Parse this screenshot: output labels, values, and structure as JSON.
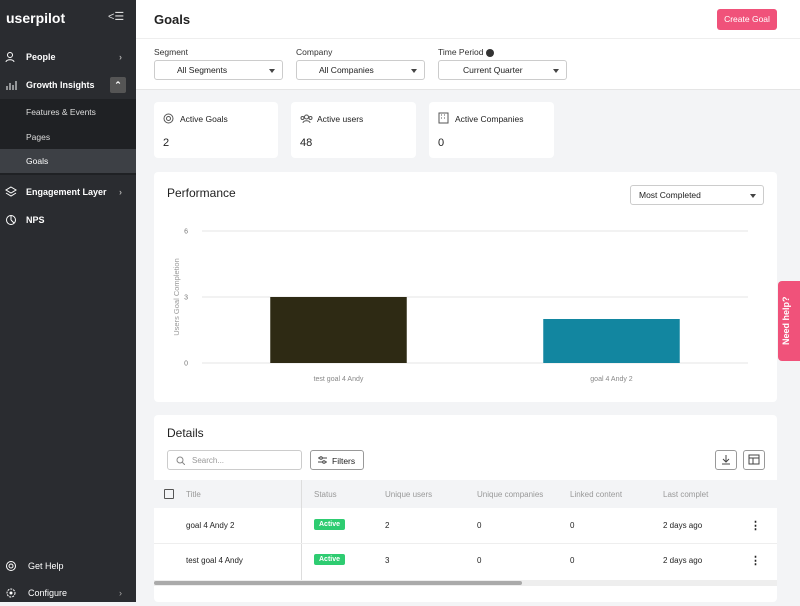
{
  "sidebar": {
    "logo": "userpilot",
    "items": [
      "People",
      "Growth Insights",
      "Engagement Layer",
      "NPS"
    ],
    "subitems": [
      "Features & Events",
      "Pages",
      "Goals"
    ],
    "bottom": [
      "Get Help",
      "Configure"
    ]
  },
  "header": {
    "title": "Goals",
    "button": "Create Goal"
  },
  "filters": [
    {
      "label": "Segment",
      "value": "All Segments"
    },
    {
      "label": "Company",
      "value": "All Companies"
    },
    {
      "label": "Time Period",
      "value": "Current Quarter"
    }
  ],
  "cards": [
    {
      "label": "Active Goals",
      "value": "2"
    },
    {
      "label": "Active users",
      "value": "48"
    },
    {
      "label": "Active Companies",
      "value": "0"
    }
  ],
  "performance": {
    "title": "Performance",
    "sort": "Most Completed"
  },
  "chart_data": {
    "type": "bar",
    "ylabel": "Users Goal Completion",
    "categories": [
      "test goal 4 Andy",
      "goal 4 Andy 2"
    ],
    "values": [
      3,
      2
    ],
    "colors": [
      "#2e2a14",
      "#1286a0"
    ],
    "ylim": [
      0,
      6
    ],
    "yticks": [
      0,
      3,
      6
    ],
    "grid": true
  },
  "details": {
    "title": "Details",
    "search": "Search...",
    "filters": "Filters",
    "columns": [
      "Title",
      "Status",
      "Unique users",
      "Unique companies",
      "Linked content",
      "Last complet"
    ],
    "rows": [
      [
        "goal 4 Andy 2",
        "Active",
        "2",
        "0",
        "0",
        "2 days ago"
      ],
      [
        "test goal 4 Andy",
        "Active",
        "3",
        "0",
        "0",
        "2 days ago"
      ]
    ]
  },
  "help": "Need help?"
}
